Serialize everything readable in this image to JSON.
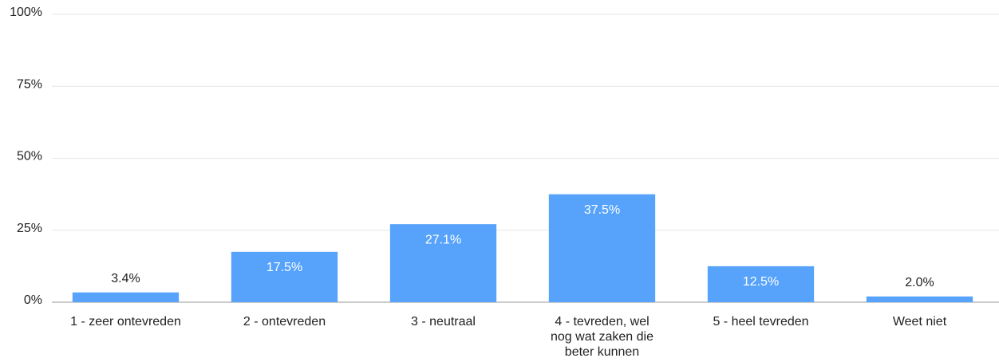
{
  "chart_data": {
    "type": "bar",
    "categories": [
      "1 - zeer ontevreden",
      "2 - ontevreden",
      "3 - neutraal",
      "4 - tevreden, wel nog wat zaken die beter kunnen",
      "5 - heel tevreden",
      "Weet niet"
    ],
    "values": [
      3.4,
      17.5,
      27.1,
      37.5,
      12.5,
      2.0
    ],
    "value_labels": [
      "3.4%",
      "17.5%",
      "27.1%",
      "37.5%",
      "12.5%",
      "2.0%"
    ],
    "color": "#57a3fb",
    "ylim": [
      0,
      100
    ],
    "yticks": [
      {
        "value": 0,
        "label": "0%"
      },
      {
        "value": 25,
        "label": "25%"
      },
      {
        "value": 50,
        "label": "50%"
      },
      {
        "value": 75,
        "label": "75%"
      },
      {
        "value": 100,
        "label": "100%"
      }
    ],
    "grid": true
  }
}
